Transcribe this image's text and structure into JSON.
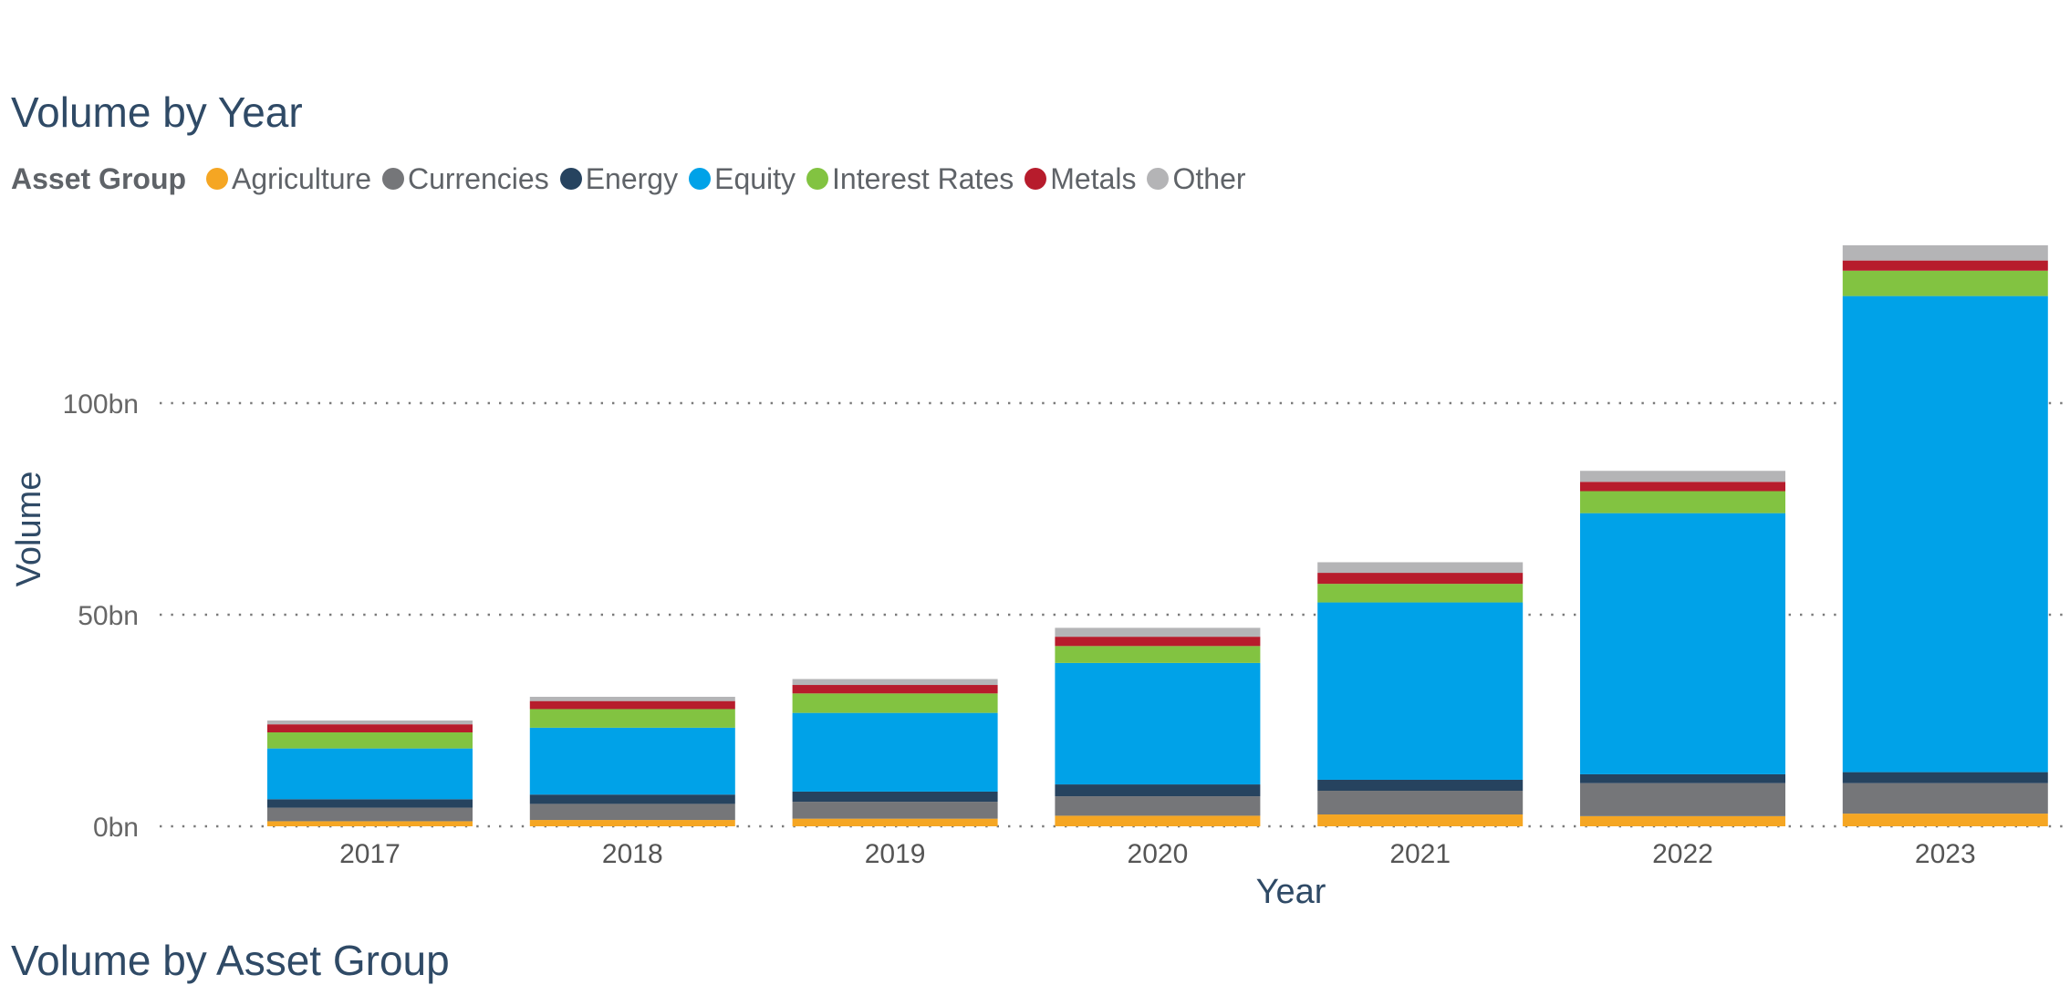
{
  "chart_data": {
    "type": "bar",
    "stacked": true,
    "title": "Volume by Year",
    "xlabel": "Year",
    "ylabel": "Volume",
    "legend_title": "Asset Group",
    "legend_placement": "top-left",
    "grid": "horizontal-dotted",
    "ylim": [
      0,
      140
    ],
    "y_ticks": [
      {
        "value": 0,
        "label": "0bn"
      },
      {
        "value": 50,
        "label": "50bn"
      },
      {
        "value": 100,
        "label": "100bn"
      }
    ],
    "categories": [
      "2017",
      "2018",
      "2019",
      "2020",
      "2021",
      "2022",
      "2023"
    ],
    "series": [
      {
        "name": "Agriculture",
        "color": "#f5a623",
        "values": [
          1.2,
          1.5,
          1.8,
          2.5,
          2.8,
          2.4,
          3.0
        ]
      },
      {
        "name": "Currencies",
        "color": "#757679",
        "values": [
          3.2,
          3.8,
          4.0,
          4.6,
          5.6,
          7.8,
          7.2
        ]
      },
      {
        "name": "Energy",
        "color": "#26435f",
        "values": [
          2.0,
          2.2,
          2.4,
          2.8,
          2.6,
          2.1,
          2.6
        ]
      },
      {
        "name": "Equity",
        "color": "#00a2e8",
        "values": [
          12.0,
          15.8,
          18.6,
          28.7,
          41.9,
          61.7,
          112.5
        ]
      },
      {
        "name": "Interest Rates",
        "color": "#82c341",
        "values": [
          3.8,
          4.4,
          4.6,
          4.0,
          4.4,
          5.2,
          6.0
        ]
      },
      {
        "name": "Metals",
        "color": "#b71c2c",
        "values": [
          1.9,
          1.9,
          2.0,
          2.2,
          2.6,
          2.2,
          2.4
        ]
      },
      {
        "name": "Other",
        "color": "#b4b4b6",
        "values": [
          0.9,
          1.0,
          1.4,
          2.1,
          2.5,
          2.6,
          3.6
        ]
      }
    ]
  },
  "next_section_title": "Volume by Asset Group"
}
